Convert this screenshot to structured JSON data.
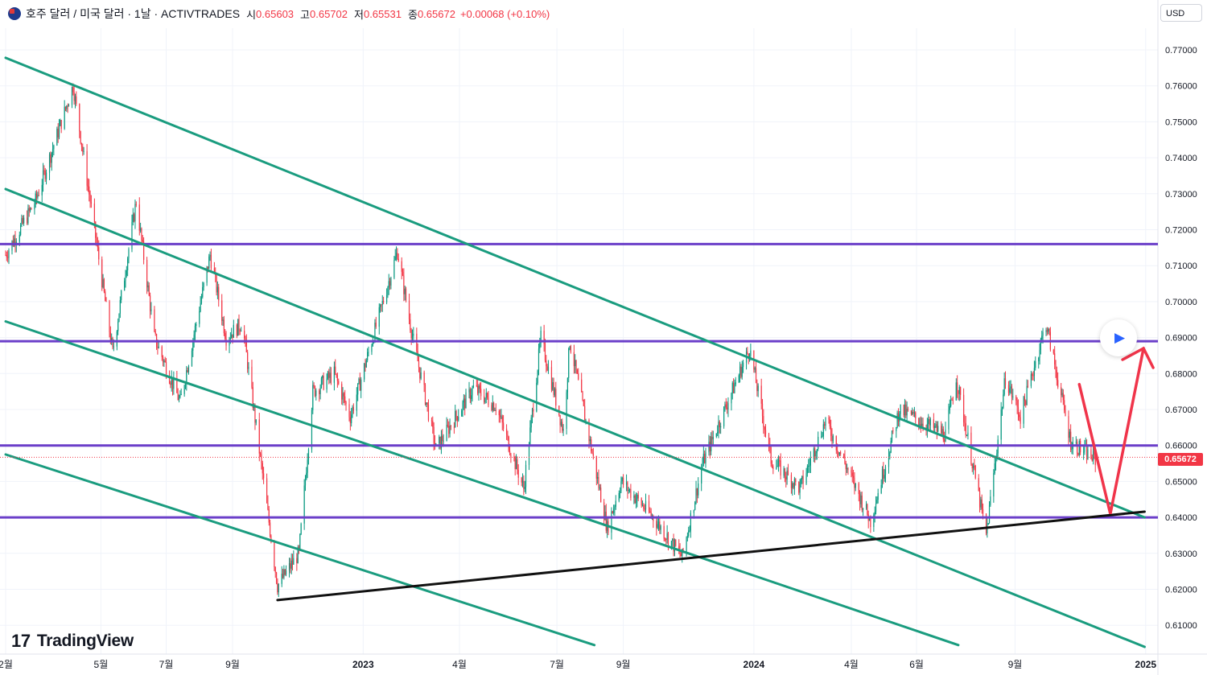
{
  "header": {
    "symbol_title": "호주 달러 / 미국 달러 · 1날 · ACTIVTRADES",
    "open_label": "시",
    "open_value": "0.65603",
    "high_label": "고",
    "high_value": "0.65702",
    "low_label": "저",
    "low_value": "0.65531",
    "close_label": "종",
    "close_value": "0.65672",
    "change": "+0.00068 (+0.10%)"
  },
  "currency_button": "USD",
  "current_price_tag": "0.65672",
  "logo_text": "TradingView",
  "icons": {
    "flag": "australia-flag-icon",
    "logo": "tradingview-logo-icon",
    "play": "play-icon"
  },
  "colors": {
    "up": "#089981",
    "down": "#f23645",
    "channel": "#1a9c7f",
    "horizontal": "#6b3fc9",
    "trendline": "#111111",
    "arrow": "#f0344a",
    "grid": "#f0f3fa"
  },
  "chart_data": {
    "type": "candlestick",
    "title": "",
    "x_axis_labels": [
      "2월",
      "5월",
      "7월",
      "9월",
      "2023",
      "4월",
      "7월",
      "9월",
      "2024",
      "4월",
      "6월",
      "9월",
      "2025"
    ],
    "y_axis_ticks": [
      "0.77000",
      "0.76000",
      "0.75000",
      "0.74000",
      "0.73000",
      "0.72000",
      "0.71000",
      "0.70000",
      "0.69000",
      "0.68000",
      "0.67000",
      "0.66000",
      "0.65000",
      "0.64000",
      "0.63000",
      "0.62000",
      "0.61000"
    ],
    "ylim": [
      0.605,
      0.775
    ],
    "grid": true,
    "current_price": 0.65672,
    "price_path": [
      [
        "2022-02-01",
        0.713
      ],
      [
        "2022-03-01",
        0.728
      ],
      [
        "2022-04-05",
        0.76
      ],
      [
        "2022-05-12",
        0.686
      ],
      [
        "2022-06-03",
        0.728
      ],
      [
        "2022-06-20",
        0.69
      ],
      [
        "2022-07-14",
        0.672
      ],
      [
        "2022-08-11",
        0.713
      ],
      [
        "2022-08-26",
        0.69
      ],
      [
        "2022-09-10",
        0.694
      ],
      [
        "2022-10-13",
        0.621
      ],
      [
        "2022-11-02",
        0.63
      ],
      [
        "2022-11-15",
        0.675
      ],
      [
        "2022-12-05",
        0.68
      ],
      [
        "2022-12-20",
        0.668
      ],
      [
        "2023-01-10",
        0.69
      ],
      [
        "2023-02-02",
        0.714
      ],
      [
        "2023-02-15",
        0.692
      ],
      [
        "2023-03-10",
        0.659
      ],
      [
        "2023-04-14",
        0.676
      ],
      [
        "2023-05-05",
        0.671
      ],
      [
        "2023-05-31",
        0.648
      ],
      [
        "2023-06-16",
        0.69
      ],
      [
        "2023-07-07",
        0.664
      ],
      [
        "2023-07-13",
        0.689
      ],
      [
        "2023-08-17",
        0.637
      ],
      [
        "2023-08-30",
        0.65
      ],
      [
        "2023-09-29",
        0.64
      ],
      [
        "2023-10-26",
        0.629
      ],
      [
        "2023-11-14",
        0.655
      ],
      [
        "2023-12-28",
        0.687
      ],
      [
        "2024-01-17",
        0.656
      ],
      [
        "2024-02-13",
        0.648
      ],
      [
        "2024-03-08",
        0.667
      ],
      [
        "2024-04-19",
        0.639
      ],
      [
        "2024-05-16",
        0.67
      ],
      [
        "2024-06-28",
        0.663
      ],
      [
        "2024-07-08",
        0.679
      ],
      [
        "2024-08-05",
        0.635
      ],
      [
        "2024-08-23",
        0.679
      ],
      [
        "2024-09-06",
        0.668
      ],
      [
        "2024-09-30",
        0.694
      ],
      [
        "2024-10-23",
        0.661
      ],
      [
        "2024-11-15",
        0.656
      ]
    ],
    "horizontal_levels": [
      0.716,
      0.689,
      0.66,
      0.64
    ],
    "channel_lines": [
      {
        "from": [
          "2022-02-01",
          0.7678
        ],
        "to": [
          "2024-12-31",
          0.64
        ]
      },
      {
        "from": [
          "2022-02-01",
          0.7313
        ],
        "to": [
          "2024-12-31",
          0.604
        ]
      },
      {
        "from": [
          "2022-02-01",
          0.6945
        ],
        "to": [
          "2024-07-10",
          0.6045
        ]
      },
      {
        "from": [
          "2022-02-01",
          0.6575
        ],
        "to": [
          "2023-08-05",
          0.6045
        ]
      }
    ],
    "trendline": {
      "from": [
        "2022-10-13",
        0.617
      ],
      "to": [
        "2024-12-31",
        0.6416
      ]
    },
    "projection_arrow": [
      [
        "2024-10-31",
        0.677
      ],
      [
        "2024-11-29",
        0.641
      ],
      [
        "2024-12-30",
        0.687
      ]
    ]
  }
}
